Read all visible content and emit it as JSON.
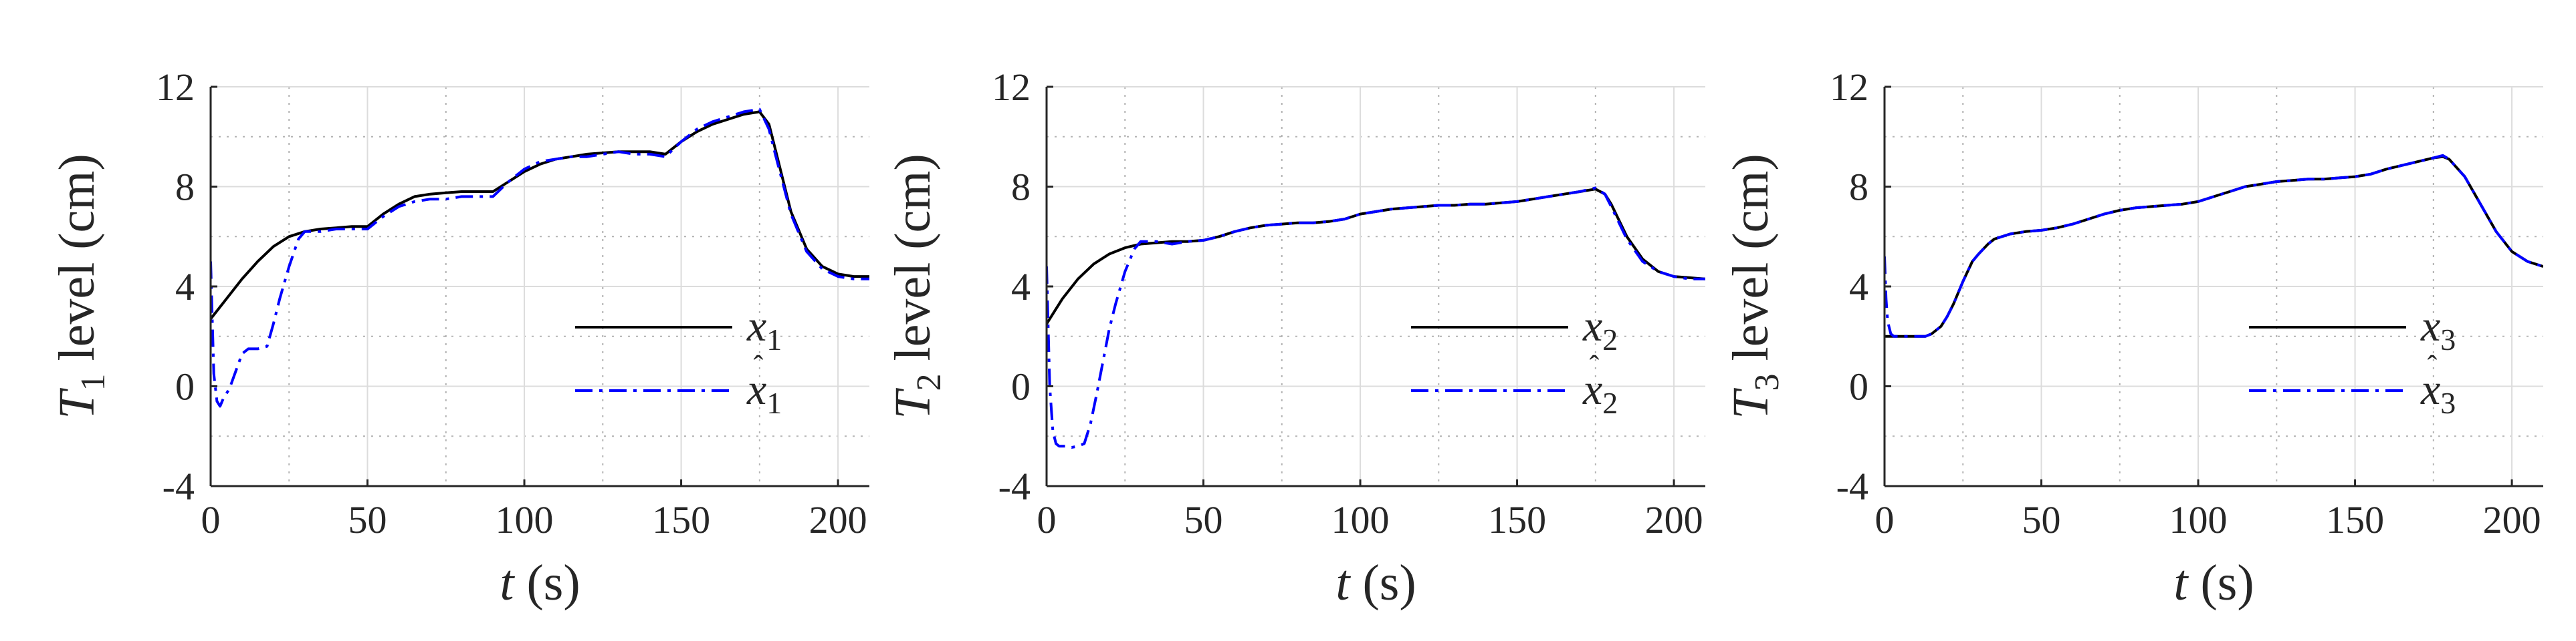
{
  "chart_data": [
    {
      "type": "line",
      "ylabel": "T1 level (cm)",
      "ylabel_parts": {
        "base": "T",
        "sub": "1",
        "rest": " level (cm)"
      },
      "xlabel": "t (s)",
      "xlabel_parts": {
        "var": "t",
        "rest": " (s)"
      },
      "xlim": [
        0,
        210
      ],
      "ylim": [
        -4,
        12
      ],
      "xticks": [
        0,
        50,
        100,
        150,
        200
      ],
      "xtick_labels": [
        "0",
        "50",
        "100",
        "150",
        "200"
      ],
      "yticks": [
        -4,
        0,
        4,
        8,
        12
      ],
      "ytick_labels": [
        "-4",
        "0",
        "4",
        "8",
        "12"
      ],
      "grid": true,
      "minor_grid": true,
      "legend_position": "bottom-right",
      "series": [
        {
          "name": "x1",
          "legend": {
            "base": "x",
            "hat": false,
            "sub": "1"
          },
          "color": "#000000",
          "style": "solid",
          "x": [
            0,
            5,
            10,
            15,
            20,
            25,
            30,
            35,
            40,
            45,
            50,
            55,
            60,
            65,
            70,
            75,
            80,
            85,
            90,
            95,
            100,
            105,
            110,
            115,
            120,
            125,
            130,
            135,
            140,
            145,
            150,
            155,
            160,
            165,
            170,
            175,
            178,
            180,
            185,
            190,
            195,
            200,
            205,
            210
          ],
          "y": [
            2.7,
            3.5,
            4.3,
            5.0,
            5.6,
            6.0,
            6.2,
            6.3,
            6.35,
            6.4,
            6.4,
            6.9,
            7.3,
            7.6,
            7.7,
            7.75,
            7.8,
            7.8,
            7.8,
            8.2,
            8.6,
            8.9,
            9.1,
            9.2,
            9.3,
            9.35,
            9.4,
            9.4,
            9.4,
            9.3,
            9.8,
            10.2,
            10.5,
            10.7,
            10.9,
            11.0,
            10.5,
            9.5,
            7.0,
            5.5,
            4.8,
            4.5,
            4.4,
            4.4
          ]
        },
        {
          "name": "x̂1",
          "legend": {
            "base": "x",
            "hat": true,
            "sub": "1"
          },
          "color": "#0000ff",
          "style": "dashdot",
          "x": [
            0,
            1,
            2,
            3,
            4,
            6,
            8,
            10,
            12,
            15,
            18,
            20,
            22,
            25,
            28,
            30,
            32,
            35,
            40,
            45,
            50,
            55,
            60,
            65,
            70,
            75,
            80,
            85,
            90,
            95,
            100,
            105,
            110,
            115,
            120,
            125,
            130,
            135,
            140,
            145,
            150,
            155,
            160,
            165,
            170,
            175,
            178,
            180,
            185,
            190,
            195,
            200,
            205,
            210
          ],
          "y": [
            5.0,
            0.5,
            -0.6,
            -0.8,
            -0.5,
            -0.1,
            0.6,
            1.3,
            1.5,
            1.5,
            1.6,
            2.5,
            3.5,
            4.8,
            5.9,
            6.2,
            6.2,
            6.2,
            6.3,
            6.3,
            6.3,
            6.8,
            7.2,
            7.4,
            7.5,
            7.5,
            7.6,
            7.6,
            7.6,
            8.2,
            8.7,
            9.0,
            9.1,
            9.2,
            9.2,
            9.3,
            9.4,
            9.3,
            9.3,
            9.2,
            9.8,
            10.3,
            10.6,
            10.8,
            11.0,
            11.1,
            10.3,
            9.3,
            6.9,
            5.4,
            4.7,
            4.4,
            4.3,
            4.3
          ]
        }
      ]
    },
    {
      "type": "line",
      "ylabel": "T2 level (cm)",
      "ylabel_parts": {
        "base": "T",
        "sub": "2",
        "rest": " level (cm)"
      },
      "xlabel": "t (s)",
      "xlabel_parts": {
        "var": "t",
        "rest": " (s)"
      },
      "xlim": [
        0,
        210
      ],
      "ylim": [
        -4,
        12
      ],
      "xticks": [
        0,
        50,
        100,
        150,
        200
      ],
      "xtick_labels": [
        "0",
        "50",
        "100",
        "150",
        "200"
      ],
      "yticks": [
        -4,
        0,
        4,
        8,
        12
      ],
      "ytick_labels": [
        "-4",
        "0",
        "4",
        "8",
        "12"
      ],
      "grid": true,
      "minor_grid": true,
      "legend_position": "bottom-right",
      "series": [
        {
          "name": "x2",
          "legend": {
            "base": "x",
            "hat": false,
            "sub": "2"
          },
          "color": "#000000",
          "style": "solid",
          "x": [
            0,
            5,
            10,
            15,
            20,
            25,
            30,
            35,
            40,
            45,
            50,
            55,
            60,
            65,
            70,
            75,
            80,
            85,
            90,
            95,
            100,
            105,
            110,
            115,
            120,
            125,
            130,
            135,
            140,
            145,
            150,
            155,
            160,
            165,
            170,
            175,
            178,
            180,
            185,
            190,
            195,
            200,
            205,
            210
          ],
          "y": [
            2.5,
            3.5,
            4.3,
            4.9,
            5.3,
            5.55,
            5.7,
            5.75,
            5.8,
            5.8,
            5.85,
            6.0,
            6.2,
            6.35,
            6.45,
            6.5,
            6.55,
            6.55,
            6.6,
            6.7,
            6.9,
            7.0,
            7.1,
            7.15,
            7.2,
            7.25,
            7.25,
            7.3,
            7.3,
            7.35,
            7.4,
            7.5,
            7.6,
            7.7,
            7.8,
            7.9,
            7.7,
            7.3,
            6.0,
            5.1,
            4.6,
            4.4,
            4.35,
            4.3
          ]
        },
        {
          "name": "x̂2",
          "legend": {
            "base": "x",
            "hat": true,
            "sub": "2"
          },
          "color": "#0000ff",
          "style": "dashdot",
          "x": [
            0,
            1,
            2,
            3,
            4,
            6,
            8,
            10,
            12,
            14,
            16,
            18,
            20,
            22,
            25,
            28,
            30,
            35,
            40,
            45,
            50,
            55,
            60,
            65,
            70,
            75,
            80,
            85,
            90,
            95,
            100,
            105,
            110,
            115,
            120,
            125,
            130,
            135,
            140,
            145,
            150,
            155,
            160,
            165,
            170,
            175,
            178,
            180,
            185,
            190,
            195,
            200,
            205,
            210
          ],
          "y": [
            4.8,
            0.0,
            -1.8,
            -2.3,
            -2.4,
            -2.4,
            -2.45,
            -2.4,
            -2.3,
            -1.5,
            -0.3,
            1.0,
            2.3,
            3.3,
            4.6,
            5.5,
            5.8,
            5.8,
            5.7,
            5.8,
            5.85,
            6.0,
            6.2,
            6.35,
            6.45,
            6.5,
            6.55,
            6.55,
            6.6,
            6.7,
            6.9,
            7.0,
            7.1,
            7.15,
            7.2,
            7.25,
            7.25,
            7.3,
            7.3,
            7.35,
            7.4,
            7.5,
            7.6,
            7.7,
            7.8,
            7.95,
            7.7,
            7.2,
            5.9,
            5.0,
            4.6,
            4.4,
            4.3,
            4.3
          ]
        }
      ]
    },
    {
      "type": "line",
      "ylabel": "T3 level (cm)",
      "ylabel_parts": {
        "base": "T",
        "sub": "3",
        "rest": " level (cm)"
      },
      "xlabel": "t (s)",
      "xlabel_parts": {
        "var": "t",
        "rest": " (s)"
      },
      "xlim": [
        0,
        210
      ],
      "ylim": [
        -4,
        12
      ],
      "xticks": [
        0,
        50,
        100,
        150,
        200
      ],
      "xtick_labels": [
        "0",
        "50",
        "100",
        "150",
        "200"
      ],
      "yticks": [
        -4,
        0,
        4,
        8,
        12
      ],
      "ytick_labels": [
        "-4",
        "0",
        "4",
        "8",
        "12"
      ],
      "grid": true,
      "minor_grid": true,
      "legend_position": "bottom-right",
      "series": [
        {
          "name": "x3",
          "legend": {
            "base": "x",
            "hat": false,
            "sub": "3"
          },
          "color": "#000000",
          "style": "solid",
          "x": [
            0,
            5,
            10,
            13,
            15,
            18,
            20,
            22,
            25,
            28,
            30,
            33,
            35,
            40,
            45,
            50,
            55,
            60,
            65,
            70,
            75,
            80,
            85,
            90,
            95,
            100,
            105,
            110,
            115,
            120,
            125,
            130,
            135,
            140,
            145,
            150,
            155,
            160,
            165,
            170,
            175,
            178,
            180,
            185,
            190,
            195,
            200,
            205,
            210
          ],
          "y": [
            2.0,
            2.0,
            2.0,
            2.0,
            2.1,
            2.4,
            2.8,
            3.3,
            4.2,
            5.0,
            5.3,
            5.7,
            5.9,
            6.1,
            6.2,
            6.25,
            6.35,
            6.5,
            6.7,
            6.9,
            7.05,
            7.15,
            7.2,
            7.25,
            7.3,
            7.4,
            7.6,
            7.8,
            8.0,
            8.1,
            8.2,
            8.25,
            8.3,
            8.3,
            8.35,
            8.4,
            8.5,
            8.7,
            8.85,
            9.0,
            9.15,
            9.2,
            9.1,
            8.4,
            7.3,
            6.2,
            5.4,
            5.0,
            4.8
          ]
        },
        {
          "name": "x̂3",
          "legend": {
            "base": "x",
            "hat": true,
            "sub": "3"
          },
          "color": "#0000ff",
          "style": "dashdot",
          "x": [
            0,
            0.5,
            1,
            2,
            3,
            5,
            10,
            13,
            15,
            18,
            20,
            22,
            25,
            28,
            30,
            33,
            35,
            40,
            45,
            50,
            55,
            60,
            65,
            70,
            75,
            80,
            85,
            90,
            95,
            100,
            105,
            110,
            115,
            120,
            125,
            130,
            135,
            140,
            145,
            150,
            155,
            160,
            165,
            170,
            175,
            178,
            180,
            185,
            190,
            195,
            200,
            205,
            210
          ],
          "y": [
            5.2,
            3.5,
            2.6,
            2.1,
            2.0,
            2.0,
            2.0,
            2.0,
            2.1,
            2.4,
            2.8,
            3.3,
            4.2,
            5.0,
            5.3,
            5.7,
            5.9,
            6.1,
            6.2,
            6.25,
            6.35,
            6.5,
            6.7,
            6.9,
            7.05,
            7.15,
            7.2,
            7.25,
            7.3,
            7.4,
            7.6,
            7.8,
            8.0,
            8.1,
            8.2,
            8.25,
            8.3,
            8.3,
            8.35,
            8.4,
            8.5,
            8.7,
            8.85,
            9.0,
            9.15,
            9.25,
            9.1,
            8.4,
            7.3,
            6.2,
            5.4,
            5.0,
            4.8
          ]
        }
      ]
    }
  ]
}
